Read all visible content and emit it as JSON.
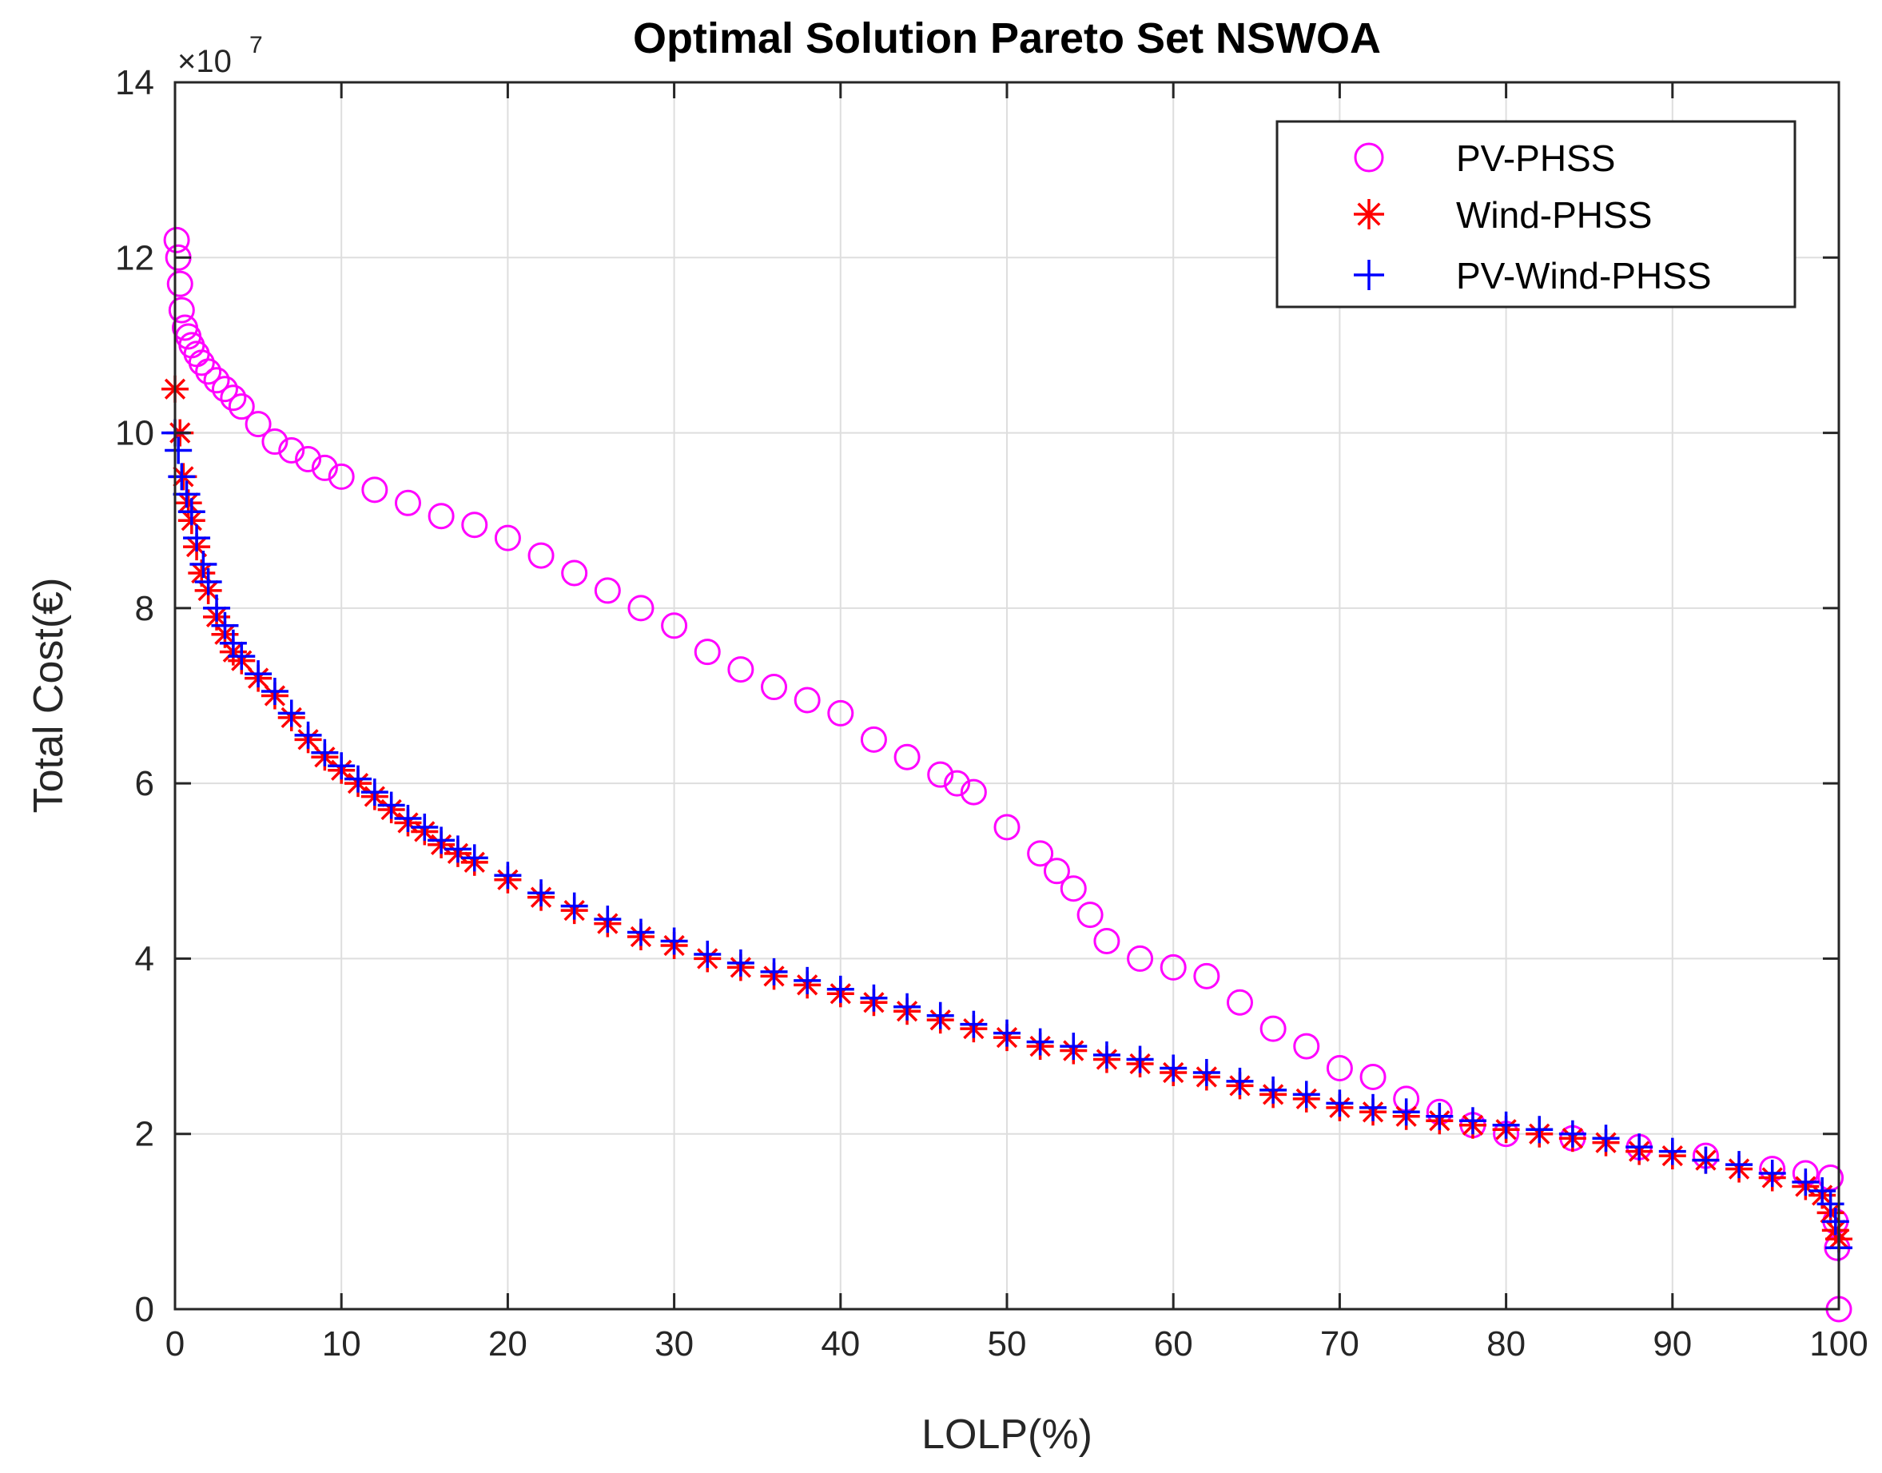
{
  "chart_data": {
    "type": "scatter",
    "title": "Optimal Solution Pareto Set NSWOA",
    "xlabel": "LOLP(%)",
    "ylabel": "Total Cost(€)",
    "y_multiplier_base": "×10",
    "y_multiplier_exp": "7",
    "xlim": [
      0,
      100
    ],
    "ylim": [
      0,
      14
    ],
    "xticks": [
      "0",
      "10",
      "20",
      "30",
      "40",
      "50",
      "60",
      "70",
      "80",
      "90",
      "100"
    ],
    "yticks": [
      "0",
      "2",
      "4",
      "6",
      "8",
      "10",
      "12",
      "14"
    ],
    "grid": true,
    "legend_position": "top-right",
    "series": [
      {
        "name": "PV-PHSS",
        "marker": "circle",
        "color": "#ff00ff",
        "x": [
          0.1,
          0.2,
          0.3,
          0.4,
          0.6,
          0.8,
          1,
          1.3,
          1.6,
          2,
          2.5,
          3,
          3.5,
          4,
          5,
          6,
          7,
          8,
          9,
          10,
          12,
          14,
          16,
          18,
          20,
          22,
          24,
          26,
          28,
          30,
          32,
          34,
          36,
          38,
          40,
          42,
          44,
          46,
          47,
          48,
          50,
          52,
          53,
          54,
          55,
          56,
          58,
          60,
          62,
          64,
          66,
          68,
          70,
          72,
          74,
          76,
          78,
          80,
          84,
          88,
          92,
          96,
          98,
          99.5,
          99.8,
          99.9,
          100
        ],
        "y": [
          12.2,
          12.0,
          11.7,
          11.4,
          11.2,
          11.1,
          11.0,
          10.9,
          10.8,
          10.7,
          10.6,
          10.5,
          10.4,
          10.3,
          10.1,
          9.9,
          9.8,
          9.7,
          9.6,
          9.5,
          9.35,
          9.2,
          9.05,
          8.95,
          8.8,
          8.6,
          8.4,
          8.2,
          8.0,
          7.8,
          7.5,
          7.3,
          7.1,
          6.95,
          6.8,
          6.5,
          6.3,
          6.1,
          6.0,
          5.9,
          5.5,
          5.2,
          5.0,
          4.8,
          4.5,
          4.2,
          4.0,
          3.9,
          3.8,
          3.5,
          3.2,
          3.0,
          2.75,
          2.65,
          2.4,
          2.25,
          2.1,
          2.0,
          1.95,
          1.85,
          1.75,
          1.6,
          1.55,
          1.5,
          1.0,
          0.7,
          0.0
        ]
      },
      {
        "name": "Wind-PHSS",
        "marker": "asterisk",
        "color": "#ff0000",
        "x": [
          0,
          0.3,
          0.5,
          0.8,
          1,
          1.3,
          1.6,
          2,
          2.5,
          3,
          3.5,
          4,
          5,
          6,
          7,
          8,
          9,
          10,
          11,
          12,
          13,
          14,
          15,
          16,
          17,
          18,
          20,
          22,
          24,
          26,
          28,
          30,
          32,
          34,
          36,
          38,
          40,
          42,
          44,
          46,
          48,
          50,
          52,
          54,
          56,
          58,
          60,
          62,
          64,
          66,
          68,
          70,
          72,
          74,
          76,
          78,
          80,
          82,
          84,
          86,
          88,
          90,
          92,
          94,
          96,
          98,
          99,
          99.5,
          99.8,
          100
        ],
        "y": [
          10.5,
          10.0,
          9.5,
          9.2,
          9.0,
          8.7,
          8.4,
          8.2,
          7.9,
          7.7,
          7.5,
          7.4,
          7.2,
          7.0,
          6.75,
          6.5,
          6.3,
          6.15,
          6.0,
          5.85,
          5.7,
          5.55,
          5.45,
          5.3,
          5.2,
          5.1,
          4.9,
          4.7,
          4.55,
          4.4,
          4.25,
          4.15,
          4.0,
          3.9,
          3.8,
          3.7,
          3.6,
          3.5,
          3.4,
          3.3,
          3.2,
          3.1,
          3.0,
          2.95,
          2.85,
          2.8,
          2.7,
          2.65,
          2.55,
          2.45,
          2.4,
          2.3,
          2.25,
          2.2,
          2.15,
          2.1,
          2.05,
          2.0,
          1.95,
          1.9,
          1.8,
          1.75,
          1.7,
          1.6,
          1.5,
          1.4,
          1.3,
          1.1,
          0.9,
          0.8
        ]
      },
      {
        "name": "PV-Wind-PHSS",
        "marker": "plus",
        "color": "#0000ff",
        "x": [
          0,
          0.2,
          0.4,
          0.7,
          1,
          1.3,
          1.7,
          2,
          2.5,
          3,
          3.5,
          4,
          5,
          6,
          7,
          8,
          9,
          10,
          11,
          12,
          13,
          14,
          15,
          16,
          17,
          18,
          20,
          22,
          24,
          26,
          28,
          30,
          32,
          34,
          36,
          38,
          40,
          42,
          44,
          46,
          48,
          50,
          52,
          54,
          56,
          58,
          60,
          62,
          64,
          66,
          68,
          70,
          72,
          74,
          76,
          78,
          80,
          82,
          84,
          86,
          88,
          90,
          92,
          94,
          96,
          98,
          99,
          99.5,
          99.8,
          100
        ],
        "y": [
          10.0,
          9.8,
          9.5,
          9.3,
          9.1,
          8.8,
          8.5,
          8.3,
          8.0,
          7.8,
          7.6,
          7.45,
          7.25,
          7.05,
          6.8,
          6.55,
          6.35,
          6.2,
          6.05,
          5.9,
          5.75,
          5.6,
          5.5,
          5.35,
          5.25,
          5.15,
          4.95,
          4.75,
          4.6,
          4.45,
          4.3,
          4.2,
          4.05,
          3.95,
          3.85,
          3.75,
          3.65,
          3.55,
          3.45,
          3.35,
          3.25,
          3.15,
          3.05,
          3.0,
          2.9,
          2.85,
          2.75,
          2.7,
          2.6,
          2.5,
          2.45,
          2.35,
          2.3,
          2.25,
          2.2,
          2.15,
          2.1,
          2.05,
          2.0,
          1.95,
          1.85,
          1.8,
          1.7,
          1.65,
          1.55,
          1.45,
          1.35,
          1.2,
          1.0,
          0.7
        ]
      }
    ]
  }
}
